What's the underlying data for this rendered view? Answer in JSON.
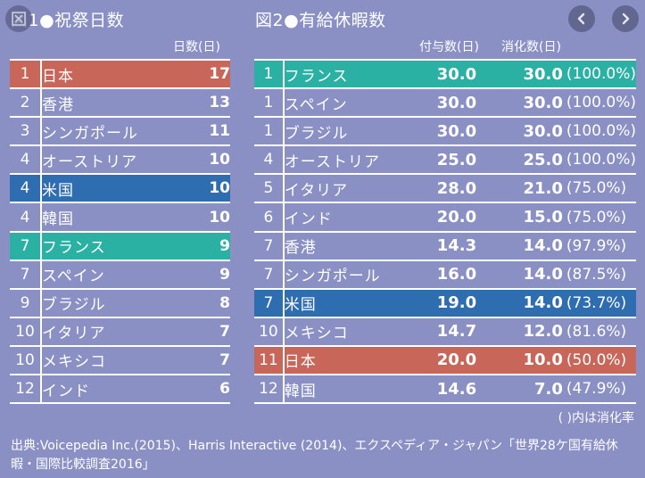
{
  "figure1": {
    "title": "図1●祝祭日数",
    "column_header": "日数(日)",
    "rows": [
      {
        "rank": "1",
        "country": "日本",
        "days": "17",
        "highlight": "red"
      },
      {
        "rank": "2",
        "country": "香港",
        "days": "13",
        "highlight": ""
      },
      {
        "rank": "3",
        "country": "シンガポール",
        "days": "11",
        "highlight": ""
      },
      {
        "rank": "4",
        "country": "オーストリア",
        "days": "10",
        "highlight": ""
      },
      {
        "rank": "4",
        "country": "米国",
        "days": "10",
        "highlight": "blue"
      },
      {
        "rank": "4",
        "country": "韓国",
        "days": "10",
        "highlight": ""
      },
      {
        "rank": "7",
        "country": "フランス",
        "days": "9",
        "highlight": "teal"
      },
      {
        "rank": "7",
        "country": "スペイン",
        "days": "9",
        "highlight": ""
      },
      {
        "rank": "9",
        "country": "ブラジル",
        "days": "8",
        "highlight": ""
      },
      {
        "rank": "10",
        "country": "イタリア",
        "days": "7",
        "highlight": ""
      },
      {
        "rank": "10",
        "country": "メキシコ",
        "days": "7",
        "highlight": ""
      },
      {
        "rank": "12",
        "country": "インド",
        "days": "6",
        "highlight": ""
      }
    ]
  },
  "figure2": {
    "title": "図2●有給休暇数",
    "column_headers": {
      "granted": "付与数(日)",
      "used": "消化数(日)"
    },
    "rows": [
      {
        "rank": "1",
        "country": "フランス",
        "granted": "30.0",
        "used": "30.0",
        "rate": "(100.0%)",
        "highlight": "teal"
      },
      {
        "rank": "1",
        "country": "スペイン",
        "granted": "30.0",
        "used": "30.0",
        "rate": "(100.0%)",
        "highlight": ""
      },
      {
        "rank": "1",
        "country": "ブラジル",
        "granted": "30.0",
        "used": "30.0",
        "rate": "(100.0%)",
        "highlight": ""
      },
      {
        "rank": "4",
        "country": "オーストリア",
        "granted": "25.0",
        "used": "25.0",
        "rate": "(100.0%)",
        "highlight": ""
      },
      {
        "rank": "5",
        "country": "イタリア",
        "granted": "28.0",
        "used": "21.0",
        "rate": "(75.0%)",
        "highlight": ""
      },
      {
        "rank": "6",
        "country": "インド",
        "granted": "20.0",
        "used": "15.0",
        "rate": "(75.0%)",
        "highlight": ""
      },
      {
        "rank": "7",
        "country": "香港",
        "granted": "14.3",
        "used": "14.0",
        "rate": "(97.9%)",
        "highlight": ""
      },
      {
        "rank": "7",
        "country": "シンガポール",
        "granted": "16.0",
        "used": "14.0",
        "rate": "(87.5%)",
        "highlight": ""
      },
      {
        "rank": "7",
        "country": "米国",
        "granted": "19.0",
        "used": "14.0",
        "rate": "(73.7%)",
        "highlight": "blue"
      },
      {
        "rank": "10",
        "country": "メキシコ",
        "granted": "14.7",
        "used": "12.0",
        "rate": "(81.6%)",
        "highlight": ""
      },
      {
        "rank": "11",
        "country": "日本",
        "granted": "20.0",
        "used": "10.0",
        "rate": "(50.0%)",
        "highlight": "red"
      },
      {
        "rank": "12",
        "country": "韓国",
        "granted": "14.6",
        "used": "7.0",
        "rate": "(47.9%)",
        "highlight": ""
      }
    ],
    "note": "( )内は消化率"
  },
  "source": "出典:Voicepedia Inc.(2015)、Harris Interactive (2014)、エクスペディア・ジャパン「世界28ケ国有給休暇・国際比較調査2016」",
  "controls": {
    "close_icon": "close-icon",
    "prev_icon": "chevron-left-icon",
    "next_icon": "chevron-right-icon"
  },
  "colors": {
    "background": "#8a90c3",
    "highlight_red": "#c9665a",
    "highlight_teal": "#2bb1a4",
    "highlight_blue": "#2f6db1",
    "nav_button": "#62678f"
  }
}
